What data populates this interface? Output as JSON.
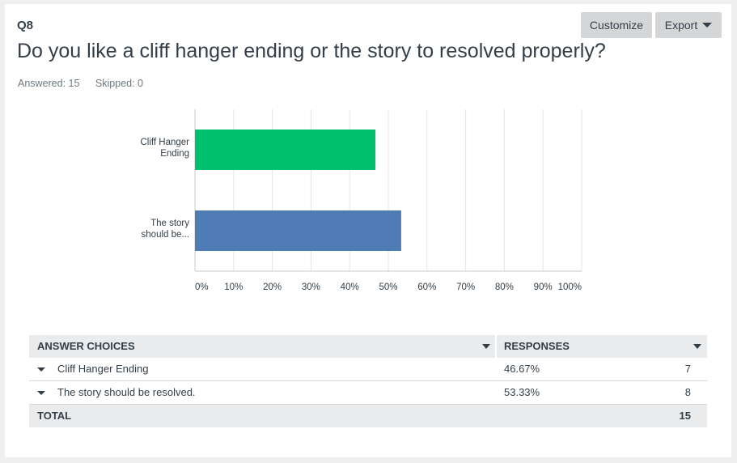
{
  "question": {
    "number": "Q8",
    "title": "Do you like a cliff hanger ending or the story to resolved properly?",
    "answered": "Answered: 15",
    "skipped": "Skipped: 0"
  },
  "toolbar": {
    "customize_label": "Customize",
    "export_label": "Export"
  },
  "colors": {
    "series": [
      "#00bf6f",
      "#507cb6"
    ],
    "grid": "#e5e5e5",
    "text": "#333e48"
  },
  "chart_data": {
    "type": "bar",
    "orientation": "horizontal",
    "categories": [
      [
        "Cliff Hanger",
        "Ending"
      ],
      [
        "The story",
        "should be..."
      ]
    ],
    "values": [
      46.67,
      53.33
    ],
    "xlim": [
      0,
      100
    ],
    "xticks": [
      "0%",
      "10%",
      "20%",
      "30%",
      "40%",
      "50%",
      "60%",
      "70%",
      "80%",
      "90%",
      "100%"
    ],
    "grid": true
  },
  "table": {
    "headers": {
      "answer_choices": "ANSWER CHOICES",
      "responses": "RESPONSES"
    },
    "rows": [
      {
        "choice": "Cliff Hanger Ending",
        "percent": "46.67%",
        "count": "7"
      },
      {
        "choice": "The story should be resolved.",
        "percent": "53.33%",
        "count": "8"
      }
    ],
    "total": {
      "label": "TOTAL",
      "count": "15"
    }
  }
}
